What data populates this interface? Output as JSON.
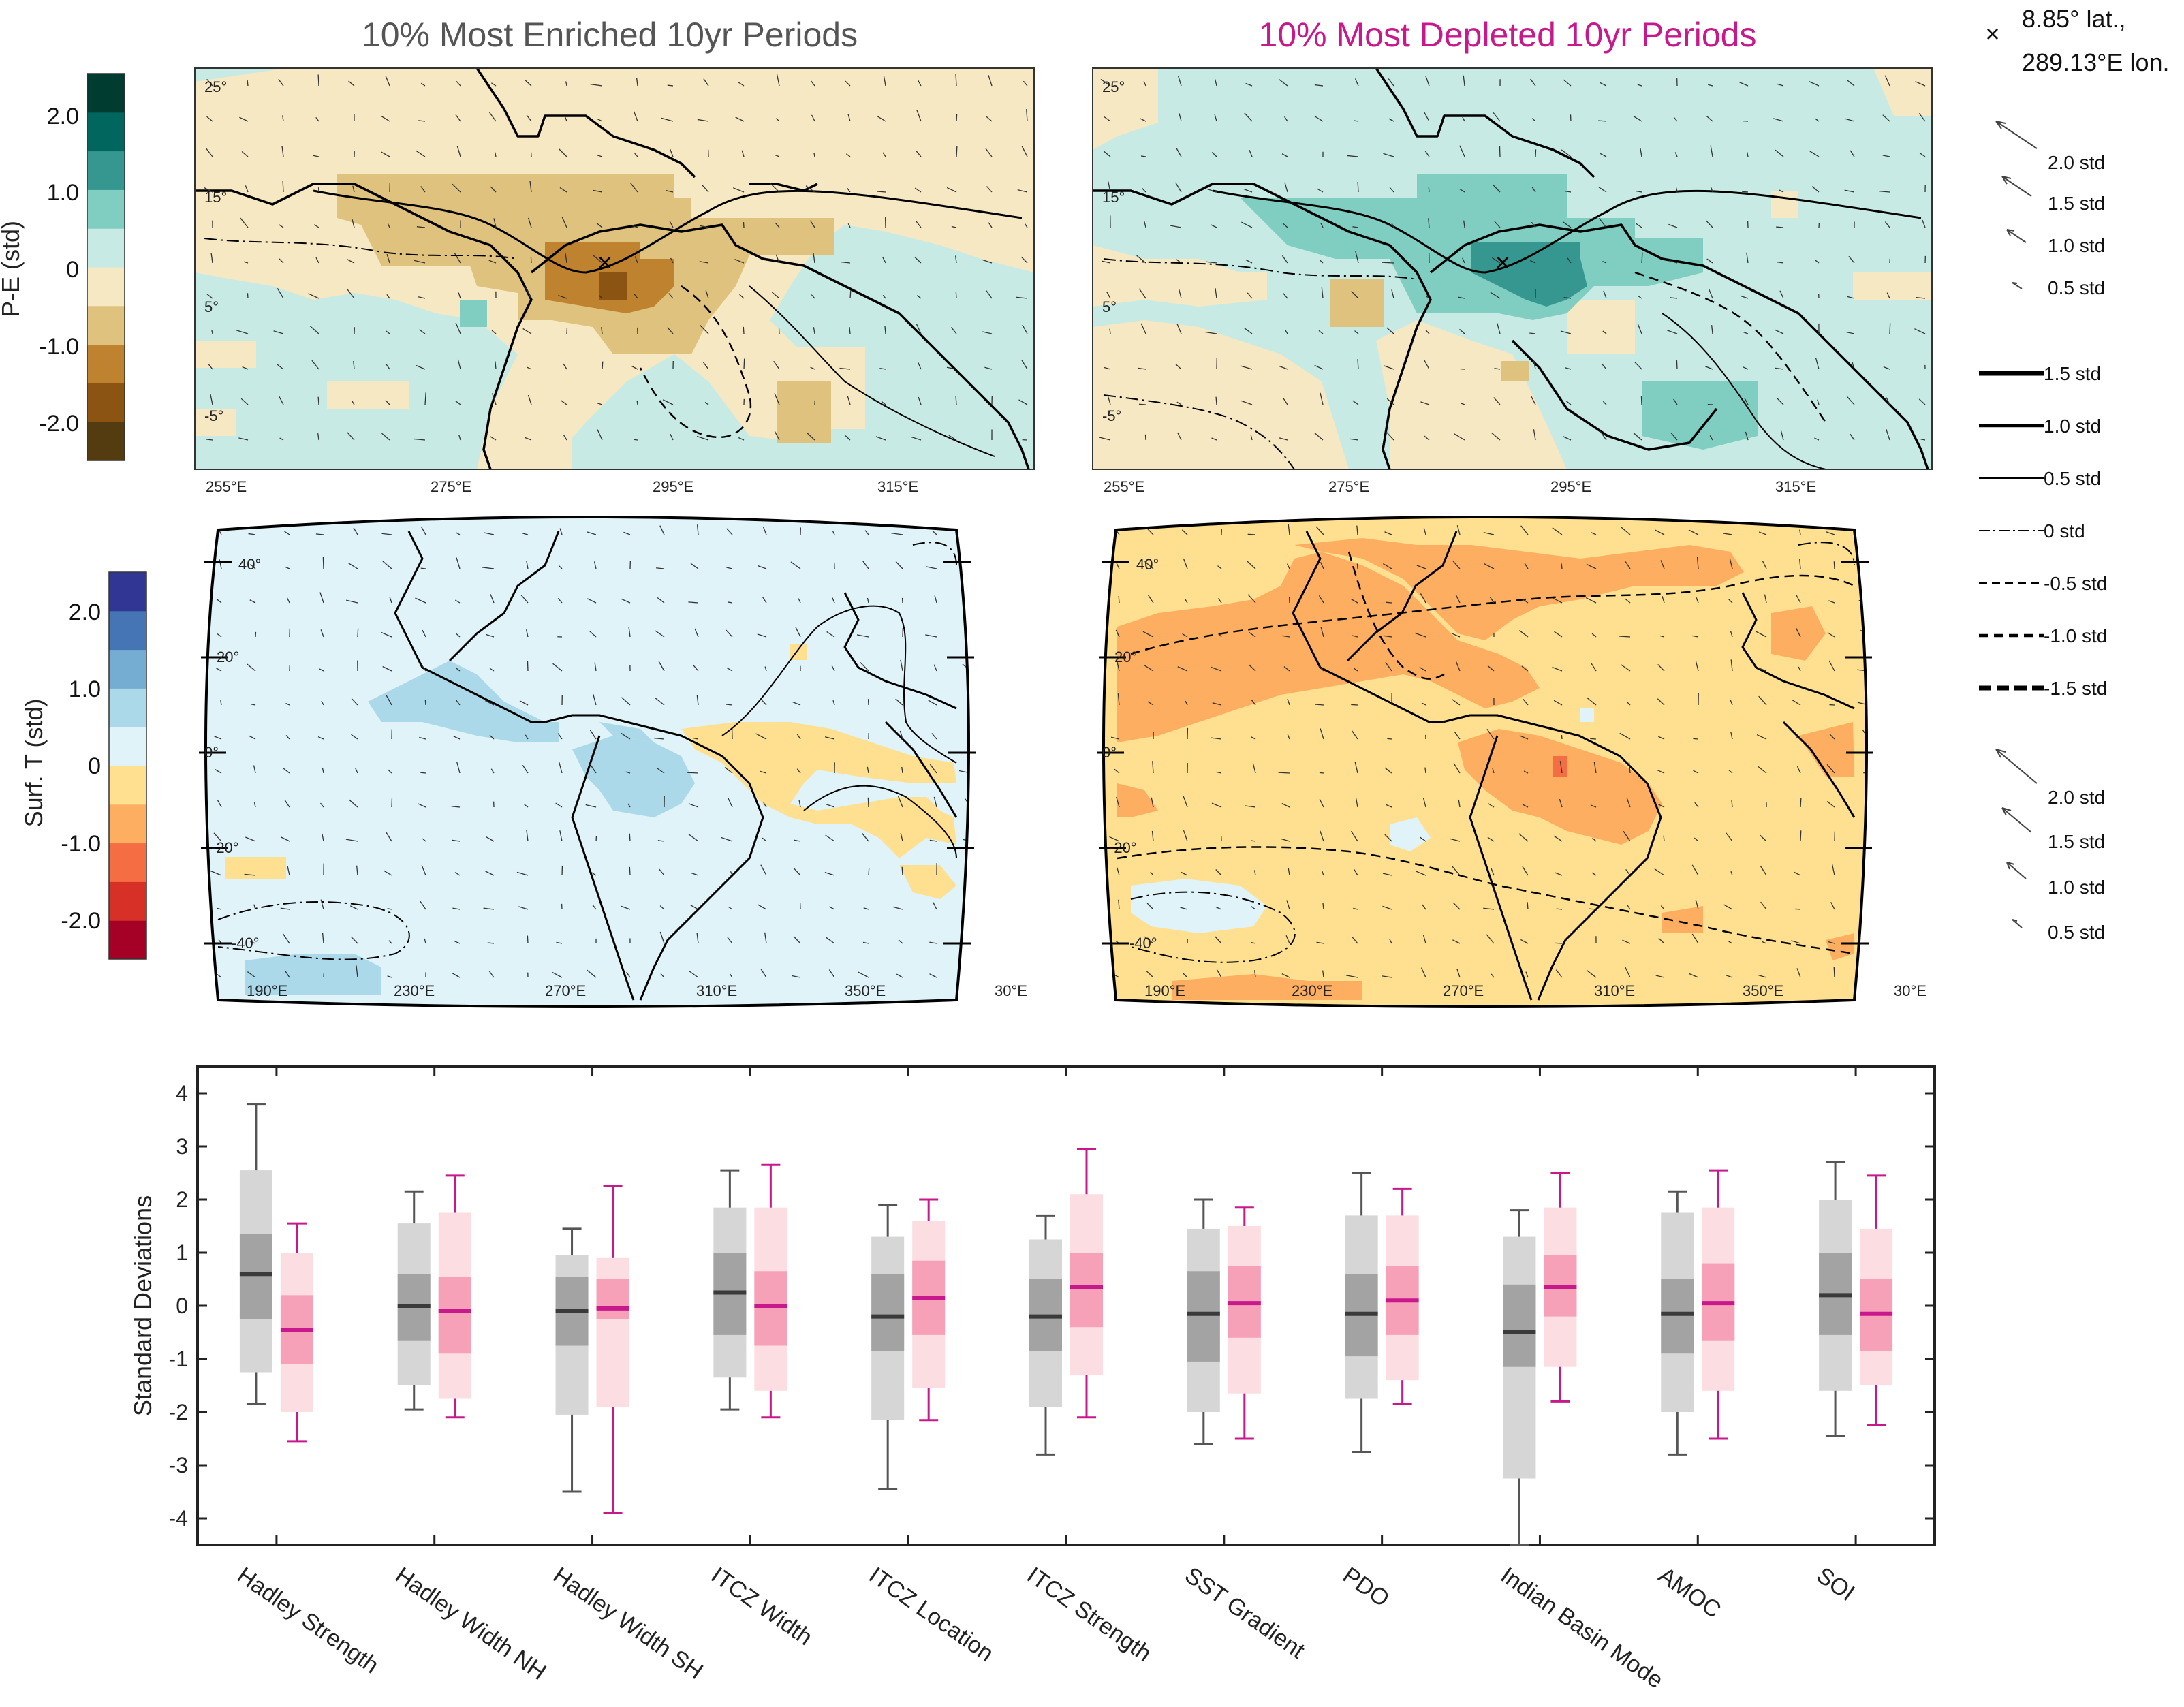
{
  "titles": {
    "enriched": "10% Most Enriched 10yr Periods",
    "depleted": "10% Most Depleted 10yr Periods"
  },
  "colors": {
    "enriched_title": "#555555",
    "depleted_title": "#c8198c",
    "gray_box_outer": "#d6d6d6",
    "gray_box_inner": "#a3a3a3",
    "gray_median": "#3a3a3a",
    "pink_box_outer": "#fcdde2",
    "pink_box_inner": "#f7a1b9",
    "pink_median": "#c8198c",
    "pe_scale": [
      "#553b10",
      "#8b5412",
      "#bf822f",
      "#dfc27d",
      "#f6e8c3",
      "#c7eae5",
      "#80cdc1",
      "#35978f",
      "#01665e",
      "#003c30"
    ],
    "t_scale": [
      "#a50026",
      "#d73027",
      "#f46d43",
      "#fdae61",
      "#fee090",
      "#e0f3f8",
      "#abd9e9",
      "#74add1",
      "#4575b4",
      "#313695"
    ]
  },
  "colorbar_pe": {
    "label": "P-E (std)",
    "ticks": [
      "2.0",
      "1.0",
      "0",
      "-1.0",
      "-2.0"
    ]
  },
  "colorbar_t": {
    "label": "Surf. T (std)",
    "ticks": [
      "2.0",
      "1.0",
      "0",
      "-1.0",
      "-2.0"
    ]
  },
  "map_pe": {
    "lat_ticks": [
      "25°",
      "15°",
      "5°",
      "-5°"
    ],
    "lon_ticks": [
      "255°E",
      "275°E",
      "295°E",
      "315°E"
    ]
  },
  "map_t": {
    "lat_ticks": [
      "40°",
      "20°",
      "0°",
      "-20°",
      "-40°"
    ],
    "lon_ticks": [
      "190°E",
      "230°E",
      "270°E",
      "310°E",
      "350°E",
      "30°E"
    ]
  },
  "legend": {
    "marker_symbol": "×",
    "marker_line1": "8.85° lat.,",
    "marker_line2": "289.13°E lon.",
    "arrows_top": [
      "2.0 std",
      "1.5 std",
      "1.0 std",
      "0.5 std"
    ],
    "contours": [
      "1.5 std",
      "1.0 std",
      "0.5 std",
      "0 std",
      "-0.5 std",
      "-1.0 std",
      "-1.5 std"
    ],
    "arrows_bottom": [
      "2.0 std",
      "1.5 std",
      "1.0 std",
      "0.5 std"
    ]
  },
  "chart_data": {
    "type": "box",
    "ylabel": "Standard Deviations",
    "ylim": [
      -4.5,
      4.5
    ],
    "yticks": [
      4,
      3,
      2,
      1,
      0,
      -1,
      -2,
      -3,
      -4
    ],
    "categories": [
      "Hadley Strength",
      "Hadley Width NH",
      "Hadley Width SH",
      "ITCZ Width",
      "ITCZ Location",
      "ITCZ Strength",
      "SST Gradient",
      "PDO",
      "Indian Basin Mode",
      "AMOC",
      "SOI"
    ],
    "series": [
      {
        "group": "enriched",
        "whisker_low": [
          -1.85,
          -1.95,
          -3.5,
          -1.95,
          -3.45,
          -2.8,
          -2.6,
          -2.75,
          -4.5,
          -2.8,
          -2.45
        ],
        "outer_low": [
          -1.25,
          -1.5,
          -2.05,
          -1.35,
          -2.15,
          -1.9,
          -2.0,
          -1.75,
          -3.25,
          -2.0,
          -1.6
        ],
        "q1": [
          -0.25,
          -0.65,
          -0.75,
          -0.55,
          -0.85,
          -0.85,
          -1.05,
          -0.95,
          -1.15,
          -0.9,
          -0.55
        ],
        "median": [
          0.6,
          0.0,
          -0.1,
          0.25,
          -0.2,
          -0.2,
          -0.15,
          -0.15,
          -0.5,
          -0.15,
          0.2
        ],
        "q3": [
          1.35,
          0.6,
          0.55,
          1.0,
          0.6,
          0.5,
          0.65,
          0.6,
          0.4,
          0.5,
          1.0
        ],
        "outer_high": [
          2.55,
          1.55,
          0.95,
          1.85,
          1.3,
          1.25,
          1.45,
          1.7,
          1.3,
          1.75,
          2.0
        ],
        "whisker_high": [
          3.8,
          2.15,
          1.45,
          2.55,
          1.9,
          1.7,
          2.0,
          2.5,
          1.8,
          2.15,
          2.7
        ]
      },
      {
        "group": "depleted",
        "whisker_low": [
          -2.55,
          -2.1,
          -3.9,
          -2.1,
          -2.15,
          -2.1,
          -2.5,
          -1.85,
          -1.8,
          -2.5,
          -2.25
        ],
        "outer_low": [
          -2.0,
          -1.75,
          -1.9,
          -1.6,
          -1.55,
          -1.3,
          -1.65,
          -1.4,
          -1.15,
          -1.6,
          -1.5
        ],
        "q1": [
          -1.1,
          -0.9,
          -0.25,
          -0.75,
          -0.55,
          -0.4,
          -0.6,
          -0.55,
          -0.2,
          -0.65,
          -0.85
        ],
        "median": [
          -0.45,
          -0.1,
          -0.05,
          0.0,
          0.15,
          0.35,
          0.05,
          0.1,
          0.35,
          0.05,
          -0.15
        ],
        "q3": [
          0.2,
          0.55,
          0.5,
          0.65,
          0.85,
          1.0,
          0.75,
          0.75,
          0.95,
          0.8,
          0.5
        ],
        "outer_high": [
          1.0,
          1.75,
          0.9,
          1.85,
          1.6,
          2.1,
          1.5,
          1.7,
          1.85,
          1.85,
          1.45
        ],
        "whisker_high": [
          1.55,
          2.45,
          2.25,
          2.65,
          2.0,
          2.95,
          1.85,
          2.2,
          2.5,
          2.55,
          2.45
        ]
      }
    ]
  }
}
